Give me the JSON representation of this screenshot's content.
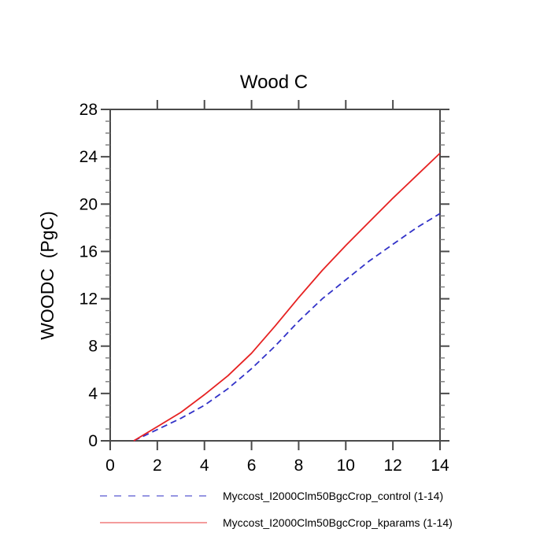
{
  "title": "Wood C",
  "y_axis_title": "WOODC  (PgC)",
  "colors": {
    "axis": "#4a4a4a",
    "minor_tick": "#7a7a7a",
    "text": "#000000",
    "control_line": "#3232c8",
    "kparams_line": "#e62222"
  },
  "legend": [
    {
      "label": "Myccost_I2000Clm50BgcCrop_control (1-14)",
      "style": "dashed",
      "color": "#7474d8"
    },
    {
      "label": "Myccost_I2000Clm50BgcCrop_kparams (1-14)",
      "style": "solid",
      "color": "#f07c7c"
    }
  ],
  "chart_data": {
    "type": "line",
    "title": "Wood C",
    "xlabel": "",
    "ylabel": "WOODC  (PgC)",
    "x": [
      1,
      2,
      3,
      4,
      5,
      6,
      7,
      8,
      9,
      10,
      11,
      12,
      13,
      14
    ],
    "series": [
      {
        "name": "Myccost_I2000Clm50BgcCrop_control (1-14)",
        "style": "dashed",
        "color": "#3232c8",
        "values": [
          0.0,
          0.95,
          1.9,
          3.0,
          4.4,
          6.1,
          8.0,
          10.1,
          12.0,
          13.6,
          15.2,
          16.6,
          18.0,
          19.2
        ]
      },
      {
        "name": "Myccost_I2000Clm50BgcCrop_kparams (1-14)",
        "style": "solid",
        "color": "#e62222",
        "values": [
          0.0,
          1.2,
          2.4,
          3.9,
          5.5,
          7.4,
          9.7,
          12.1,
          14.4,
          16.5,
          18.5,
          20.5,
          22.4,
          24.3
        ]
      }
    ],
    "xlim": [
      0,
      14
    ],
    "ylim": [
      0,
      28
    ],
    "x_major_ticks": [
      0,
      2,
      4,
      6,
      8,
      10,
      12,
      14
    ],
    "y_major_ticks": [
      0,
      4,
      8,
      12,
      16,
      20,
      24,
      28
    ],
    "y_minor_step": 1,
    "grid": false,
    "legend_position": "bottom"
  }
}
